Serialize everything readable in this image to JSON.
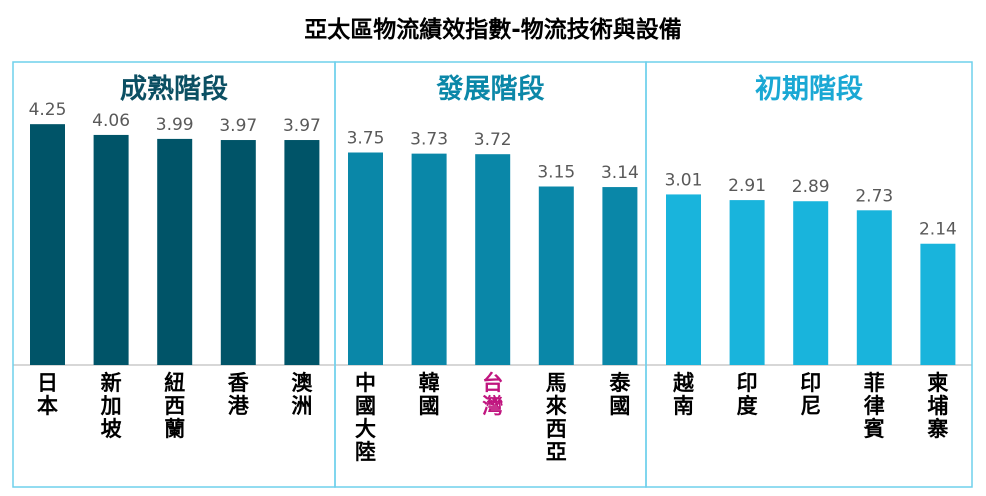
{
  "chart_data": {
    "type": "bar",
    "title": "亞太區物流績效指數-物流技術與設備",
    "xlabel": "",
    "ylabel": "",
    "ylim": [
      0,
      4.5
    ],
    "grid": false,
    "stages": [
      {
        "name": "成熟階段",
        "color": "#005468",
        "title_color": "#0b4f63",
        "categories": [
          "日本",
          "新加坡",
          "紐西蘭",
          "香港",
          "澳洲"
        ],
        "values": [
          4.25,
          4.06,
          3.99,
          3.97,
          3.97
        ],
        "value_labels": [
          "4.25",
          "4.06",
          "3.99",
          "3.97",
          "3.97"
        ]
      },
      {
        "name": "發展階段",
        "color": "#0a87a8",
        "title_color": "#0b87a8",
        "categories": [
          "中國大陸",
          "韓國",
          "台灣",
          "馬來西亞",
          "泰國"
        ],
        "values": [
          3.75,
          3.73,
          3.72,
          3.15,
          3.14
        ],
        "value_labels": [
          "3.75",
          "3.73",
          "3.72",
          "3.15",
          "3.14"
        ]
      },
      {
        "name": "初期階段",
        "color": "#19b4dc",
        "title_color": "#1aa8d4",
        "categories": [
          "越南",
          "印度",
          "印尼",
          "菲律賓",
          "柬埔寨"
        ],
        "values": [
          3.01,
          2.91,
          2.89,
          2.73,
          2.14
        ],
        "value_labels": [
          "3.01",
          "2.91",
          "2.89",
          "2.73",
          "2.14"
        ]
      }
    ],
    "highlight": {
      "category": "台灣",
      "color": "#c0157f"
    },
    "label_color": "#000000",
    "value_label_color": "#595959",
    "panel_border_color": "#6fd0ec"
  }
}
